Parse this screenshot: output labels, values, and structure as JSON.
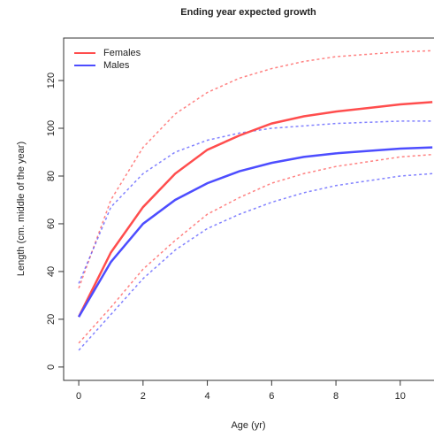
{
  "chart_data": {
    "type": "line",
    "title": "Ending year expected growth",
    "x_label": "Age (yr)",
    "y_label": "Length (cm. middle of the year)",
    "x": [
      0,
      1,
      2,
      3,
      4,
      5,
      6,
      7,
      8,
      9,
      10,
      11
    ],
    "series": [
      {
        "name": "Females",
        "color": "#ff4d4d",
        "values": [
          21,
          48,
          67,
          81,
          91,
          97,
          102,
          105,
          107,
          108.5,
          110,
          111
        ],
        "upper": [
          33,
          70,
          92,
          106,
          115,
          121,
          125,
          128,
          130,
          131,
          132,
          132.5
        ],
        "lower": [
          10,
          25,
          41,
          53,
          64,
          71,
          77,
          81,
          84,
          86,
          88,
          89
        ]
      },
      {
        "name": "Males",
        "color": "#4d4dff",
        "values": [
          21,
          44,
          60,
          70,
          77,
          82,
          85.5,
          88,
          89.5,
          90.5,
          91.5,
          92
        ],
        "upper": [
          35,
          67,
          81,
          90,
          95,
          98,
          100,
          101,
          102,
          102.5,
          103,
          103
        ],
        "lower": [
          7,
          22,
          37,
          49,
          58,
          64,
          69,
          73,
          76,
          78,
          80,
          81
        ]
      }
    ],
    "xlim": [
      -0.47,
      11.05
    ],
    "ylim": [
      -5.6,
      137.8
    ],
    "xticks": [
      0,
      2,
      4,
      6,
      8,
      10
    ],
    "yticks": [
      0,
      20,
      40,
      60,
      80,
      100,
      120
    ],
    "legend": "top-left",
    "grid": false
  }
}
